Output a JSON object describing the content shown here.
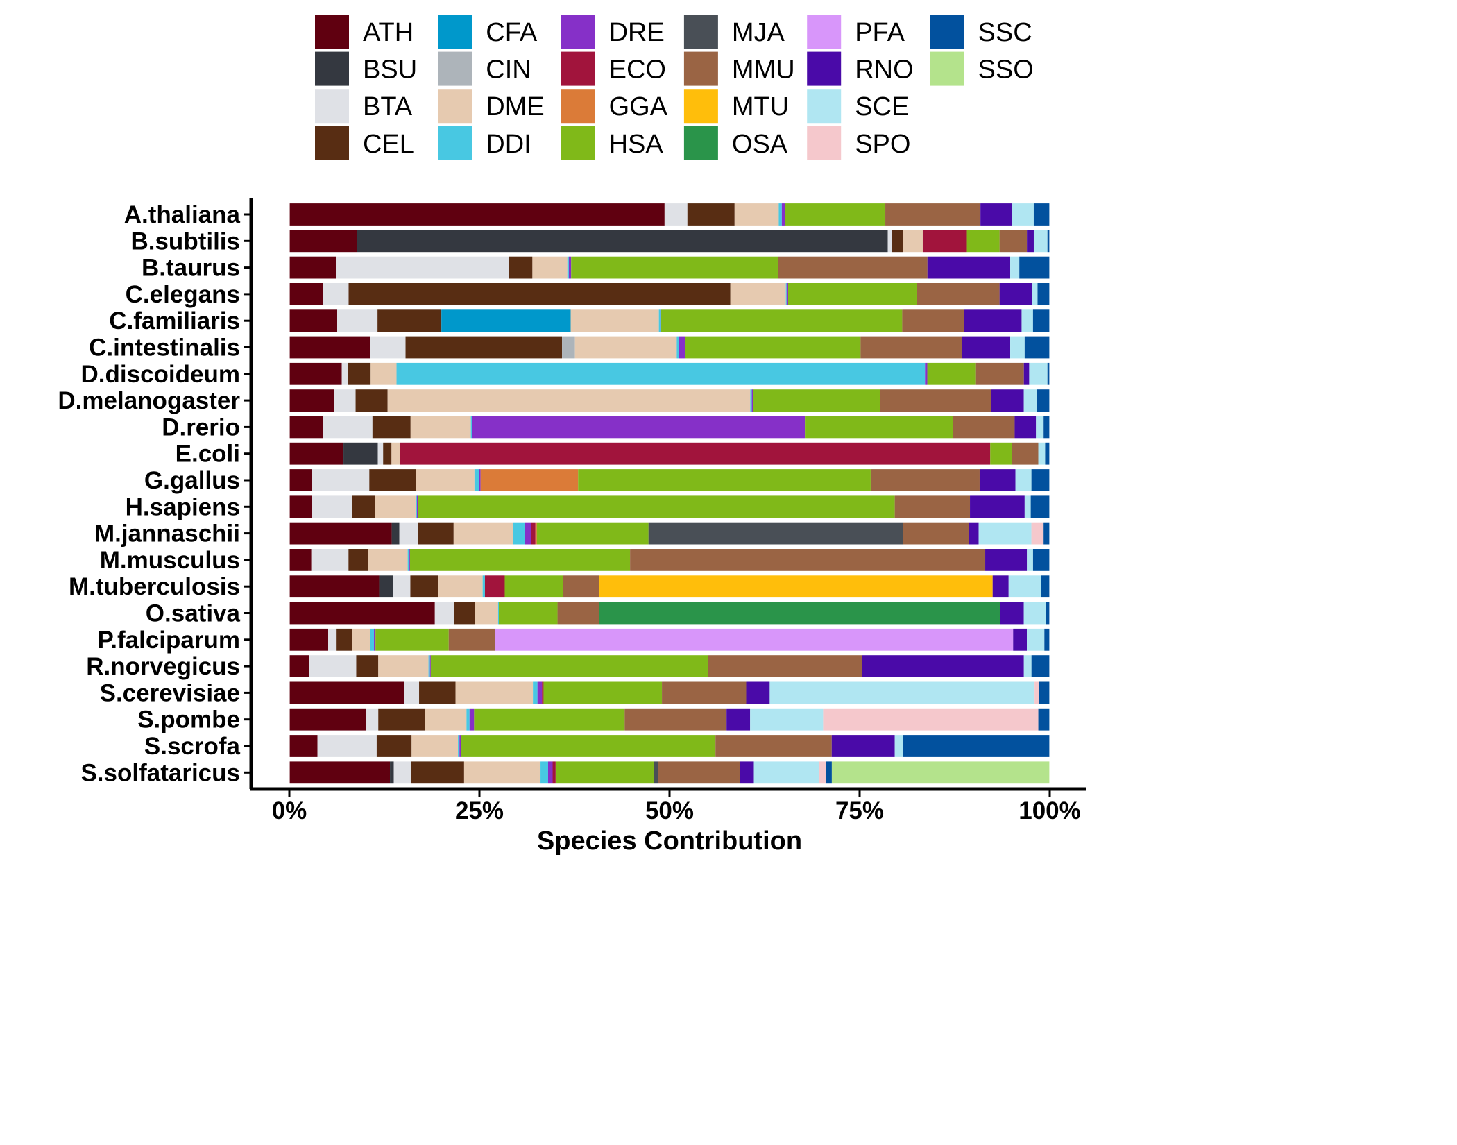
{
  "chart_data": {
    "type": "bar",
    "orientation": "horizontal",
    "stacked": "percent",
    "xlabel": "Species Contribution",
    "ylabel": "",
    "xlim": [
      0,
      100
    ],
    "x_ticks": [
      "0%",
      "25%",
      "50%",
      "75%",
      "100%"
    ],
    "legend_position": "top",
    "grid": false,
    "categories": [
      "A.thaliana",
      "B.subtilis",
      "B.taurus",
      "C.elegans",
      "C.familiaris",
      "C.intestinalis",
      "D.discoideum",
      "D.melanogaster",
      "D.rerio",
      "E.coli",
      "G.gallus",
      "H.sapiens",
      "M.jannaschii",
      "M.musculus",
      "M.tuberculosis",
      "O.sativa",
      "P.falciparum",
      "R.norvegicus",
      "S.cerevisiae",
      "S.pombe",
      "S.scrofa",
      "S.solfataricus"
    ],
    "series": [
      {
        "name": "ATH",
        "color": "#600010",
        "values": [
          49.3,
          8.9,
          6.2,
          4.4,
          6.3,
          10.6,
          6.9,
          5.9,
          4.4,
          7.1,
          3.0,
          3.0,
          13.4,
          2.9,
          11.8,
          19.1,
          5.1,
          2.6,
          15.1,
          10.1,
          3.7,
          13.3
        ]
      },
      {
        "name": "BSU",
        "color": "#343840",
        "values": [
          0.0,
          69.8,
          0.0,
          0.0,
          0.0,
          0.0,
          0.0,
          0.0,
          0.0,
          4.5,
          0.0,
          0.0,
          1.0,
          0.0,
          1.8,
          0.0,
          0.0,
          0.0,
          0.0,
          0.0,
          0.0,
          0.5
        ]
      },
      {
        "name": "BTA",
        "color": "#dfe1e6",
        "values": [
          3.0,
          0.5,
          22.7,
          3.4,
          5.3,
          4.7,
          0.8,
          2.8,
          6.5,
          0.7,
          7.5,
          5.3,
          2.4,
          4.9,
          2.3,
          2.5,
          1.1,
          6.2,
          2.0,
          1.6,
          7.8,
          2.3
        ]
      },
      {
        "name": "CEL",
        "color": "#582d13",
        "values": [
          6.2,
          1.5,
          3.1,
          50.2,
          8.4,
          20.6,
          3.0,
          4.2,
          5.0,
          1.1,
          6.1,
          3.0,
          4.7,
          2.6,
          3.7,
          2.8,
          2.0,
          2.9,
          4.8,
          6.1,
          4.6,
          7.0
        ]
      },
      {
        "name": "CFA",
        "color": "#0098cb",
        "values": [
          0.0,
          0.0,
          0.0,
          0.0,
          17.0,
          0.0,
          0.0,
          0.0,
          0.0,
          0.0,
          0.0,
          0.0,
          0.0,
          0.0,
          0.0,
          0.0,
          0.0,
          0.0,
          0.0,
          0.0,
          0.0,
          0.0
        ]
      },
      {
        "name": "CIN",
        "color": "#adb4ba",
        "values": [
          0.0,
          0.0,
          0.0,
          0.0,
          0.0,
          1.7,
          0.0,
          0.0,
          0.0,
          0.0,
          0.0,
          0.0,
          0.0,
          0.0,
          0.0,
          0.0,
          0.0,
          0.0,
          0.0,
          0.0,
          0.0,
          0.0
        ]
      },
      {
        "name": "DME",
        "color": "#e6cab0",
        "values": [
          5.8,
          2.6,
          4.6,
          7.3,
          11.6,
          13.4,
          3.4,
          47.6,
          7.9,
          1.1,
          7.7,
          5.4,
          7.8,
          5.2,
          5.8,
          3.0,
          2.4,
          6.6,
          10.2,
          5.5,
          6.1,
          10.1
        ]
      },
      {
        "name": "DDI",
        "color": "#48c8e2",
        "values": [
          0.4,
          0.0,
          0.2,
          0.1,
          0.2,
          0.3,
          69.5,
          0.2,
          0.2,
          0.0,
          0.6,
          0.1,
          1.5,
          0.2,
          0.3,
          0.1,
          0.5,
          0.2,
          0.6,
          0.4,
          0.2,
          1.0
        ]
      },
      {
        "name": "DRE",
        "color": "#8630c8",
        "values": [
          0.4,
          0.0,
          0.3,
          0.2,
          0.1,
          0.8,
          0.3,
          0.2,
          43.6,
          0.0,
          0.2,
          0.1,
          0.8,
          0.1,
          0.0,
          0.0,
          0.2,
          0.1,
          0.6,
          0.6,
          0.2,
          0.6
        ]
      },
      {
        "name": "ECO",
        "color": "#a1143c",
        "values": [
          0.0,
          5.8,
          0.0,
          0.0,
          0.0,
          0.0,
          0.0,
          0.0,
          0.0,
          77.4,
          0.0,
          0.0,
          0.6,
          0.0,
          2.6,
          0.0,
          0.0,
          0.0,
          0.2,
          0.0,
          0.0,
          0.4
        ]
      },
      {
        "name": "GGA",
        "color": "#db7b38",
        "values": [
          0.0,
          0.0,
          0.0,
          0.0,
          0.0,
          0.0,
          0.0,
          0.0,
          0.0,
          0.0,
          12.8,
          0.0,
          0.2,
          0.0,
          0.0,
          0.0,
          0.0,
          0.0,
          0.0,
          0.0,
          0.0,
          0.0
        ]
      },
      {
        "name": "HSA",
        "color": "#80b919",
        "values": [
          13.2,
          4.3,
          27.2,
          16.9,
          31.7,
          23.1,
          6.4,
          16.6,
          19.4,
          2.8,
          38.4,
          62.8,
          14.6,
          29.0,
          7.7,
          7.7,
          9.6,
          36.5,
          15.6,
          19.8,
          33.5,
          13.0
        ]
      },
      {
        "name": "MJA",
        "color": "#494f56",
        "values": [
          0.0,
          0.0,
          0.0,
          0.0,
          0.0,
          0.0,
          0.0,
          0.0,
          0.0,
          0.0,
          0.0,
          0.0,
          33.3,
          0.0,
          0.0,
          0.0,
          0.0,
          0.0,
          0.0,
          0.0,
          0.0,
          0.5
        ]
      },
      {
        "name": "MMU",
        "color": "#9a6444",
        "values": [
          12.5,
          3.6,
          19.7,
          10.9,
          8.1,
          13.3,
          6.3,
          14.6,
          8.1,
          3.5,
          14.3,
          9.9,
          8.6,
          46.8,
          4.7,
          5.5,
          6.1,
          20.2,
          11.1,
          13.4,
          15.3,
          10.9
        ]
      },
      {
        "name": "MTU",
        "color": "#ffbe0b",
        "values": [
          0.0,
          0.0,
          0.0,
          0.0,
          0.0,
          0.0,
          0.0,
          0.0,
          0.0,
          0.0,
          0.0,
          0.0,
          0.0,
          0.0,
          51.7,
          0.0,
          0.0,
          0.0,
          0.0,
          0.0,
          0.0,
          0.0
        ]
      },
      {
        "name": "OSA",
        "color": "#2a944a",
        "values": [
          0.0,
          0.0,
          0.0,
          0.0,
          0.0,
          0.0,
          0.0,
          0.0,
          0.0,
          0.0,
          0.0,
          0.0,
          0.0,
          0.0,
          0.0,
          52.6,
          0.0,
          0.0,
          0.0,
          0.0,
          0.0,
          0.0
        ]
      },
      {
        "name": "PFA",
        "color": "#d896fa",
        "values": [
          0.0,
          0.0,
          0.0,
          0.0,
          0.0,
          0.0,
          0.0,
          0.0,
          0.0,
          0.0,
          0.0,
          0.0,
          0.0,
          0.0,
          0.0,
          0.0,
          67.9,
          0.0,
          0.0,
          0.0,
          0.0,
          0.0
        ]
      },
      {
        "name": "RNO",
        "color": "#4a0aa8",
        "values": [
          4.1,
          0.9,
          10.9,
          4.3,
          7.6,
          6.4,
          0.7,
          4.3,
          2.8,
          0.0,
          4.7,
          7.2,
          1.3,
          5.5,
          2.1,
          3.1,
          1.8,
          21.3,
          3.1,
          3.1,
          8.3,
          1.8
        ]
      },
      {
        "name": "SCE",
        "color": "#b0e6f2",
        "values": [
          2.9,
          1.8,
          1.2,
          0.7,
          1.5,
          1.9,
          2.4,
          1.7,
          1.0,
          0.9,
          2.1,
          0.8,
          6.9,
          0.8,
          4.3,
          2.9,
          2.3,
          1.0,
          34.9,
          9.6,
          1.1,
          8.6
        ]
      },
      {
        "name": "SPO",
        "color": "#f5c8cc",
        "values": [
          0.0,
          0.0,
          0.0,
          0.0,
          0.0,
          0.0,
          0.0,
          0.0,
          0.0,
          0.0,
          0.0,
          0.0,
          1.6,
          0.0,
          0.0,
          0.0,
          0.0,
          0.0,
          0.6,
          28.3,
          0.0,
          0.9
        ]
      },
      {
        "name": "SSC",
        "color": "#02519e",
        "values": [
          2.1,
          0.3,
          4.0,
          1.6,
          2.2,
          3.3,
          0.3,
          1.7,
          0.8,
          0.6,
          2.4,
          2.5,
          0.8,
          2.2,
          1.1,
          0.5,
          0.7,
          2.4,
          1.4,
          1.5,
          19.3,
          0.8
        ]
      },
      {
        "name": "SSO",
        "color": "#b4e38c",
        "values": [
          0.0,
          0.0,
          0.0,
          0.0,
          0.0,
          0.0,
          0.0,
          0.0,
          0.0,
          0.0,
          0.0,
          0.0,
          0.0,
          0.0,
          0.0,
          0.0,
          0.0,
          0.0,
          0.0,
          0.0,
          0.0,
          28.8
        ]
      }
    ],
    "legend_columns": [
      [
        "ATH",
        "BSU",
        "BTA",
        "CEL"
      ],
      [
        "CFA",
        "CIN",
        "DME",
        "DDI"
      ],
      [
        "DRE",
        "ECO",
        "GGA",
        "HSA"
      ],
      [
        "MJA",
        "MMU",
        "MTU",
        "OSA"
      ],
      [
        "PFA",
        "RNO",
        "SCE",
        "SPO"
      ],
      [
        "SSC",
        "SSO"
      ]
    ]
  }
}
